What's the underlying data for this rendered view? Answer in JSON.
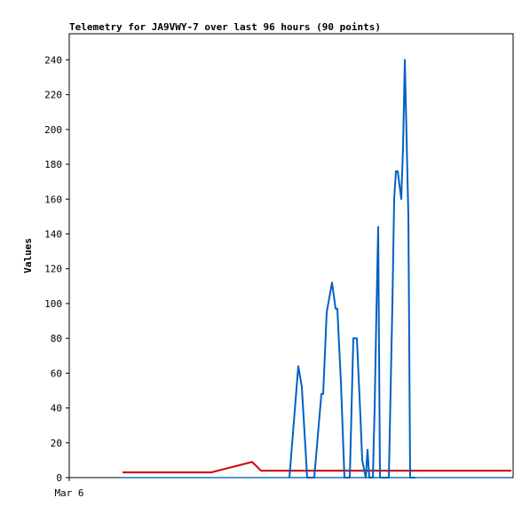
{
  "chart_data": {
    "type": "line",
    "title": "Telemetry for JA9VWY-7 over last 96 hours (90 points)",
    "xlabel": "",
    "ylabel": "Values",
    "x_tick_labels": [
      "Mar 6"
    ],
    "ylim": [
      0,
      255
    ],
    "y_ticks": [
      0,
      20,
      40,
      60,
      80,
      100,
      120,
      140,
      160,
      180,
      200,
      220,
      240
    ],
    "xlim": [
      0,
      250
    ],
    "grid": false,
    "legend": "none",
    "series": [
      {
        "color": "#cc0000",
        "x": [
          30,
          80,
          103,
          108,
          111,
          150,
          200,
          249
        ],
        "y": [
          3,
          3,
          9,
          4,
          4,
          4,
          4,
          4
        ]
      },
      {
        "color": "#1f6fc4",
        "x": [
          30,
          249
        ],
        "y": [
          0,
          0
        ]
      },
      {
        "color": "#0060c0",
        "x": [
          124,
          129,
          131,
          134,
          138,
          142,
          143,
          145,
          148,
          150,
          151,
          153,
          155,
          158,
          160,
          162,
          164,
          165,
          167,
          168,
          169,
          171,
          172,
          173,
          174,
          175,
          176,
          177,
          178,
          179,
          180,
          182,
          183,
          184,
          185,
          186,
          187,
          188,
          189,
          191,
          192,
          193,
          194,
          195
        ],
        "y": [
          0,
          64,
          52,
          0,
          0,
          48,
          48,
          95,
          112,
          97,
          97,
          55,
          0,
          0,
          80,
          80,
          35,
          10,
          0,
          16,
          0,
          0,
          40,
          95,
          144,
          0,
          0,
          0,
          0,
          0,
          0,
          100,
          160,
          176,
          176,
          168,
          160,
          190,
          240,
          150,
          0,
          0,
          0,
          0
        ]
      }
    ]
  }
}
